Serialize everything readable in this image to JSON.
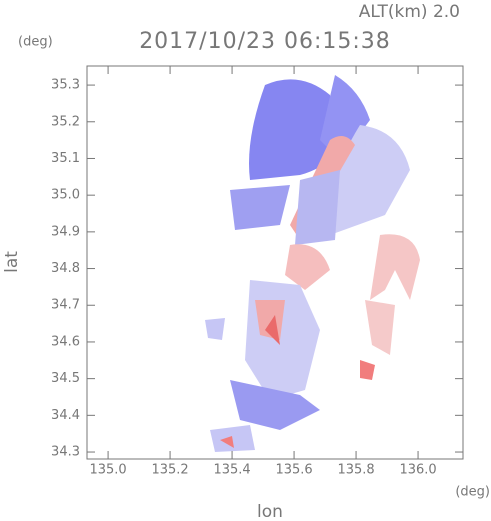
{
  "chart_data": {
    "type": "map",
    "title": "2017/10/23 06:15:38",
    "subtitle": "ALT(km)  2.0",
    "y_unit": "(deg)",
    "x_unit": "(deg)",
    "xlabel": "lon",
    "ylabel": "lat",
    "xlim": [
      134.932,
      136.145
    ],
    "ylim": [
      34.281,
      35.352
    ],
    "xticks": [
      {
        "value": 135,
        "label": "135.0"
      },
      135.2,
      135.4,
      135.6,
      135.8,
      {
        "value": 136,
        "label": "136.0"
      }
    ],
    "yticks": [
      34.3,
      34.4,
      34.5,
      34.6,
      34.7,
      34.8,
      34.9,
      {
        "value": 35,
        "label": "35.0"
      },
      35.1,
      35.2,
      35.3
    ]
  }
}
